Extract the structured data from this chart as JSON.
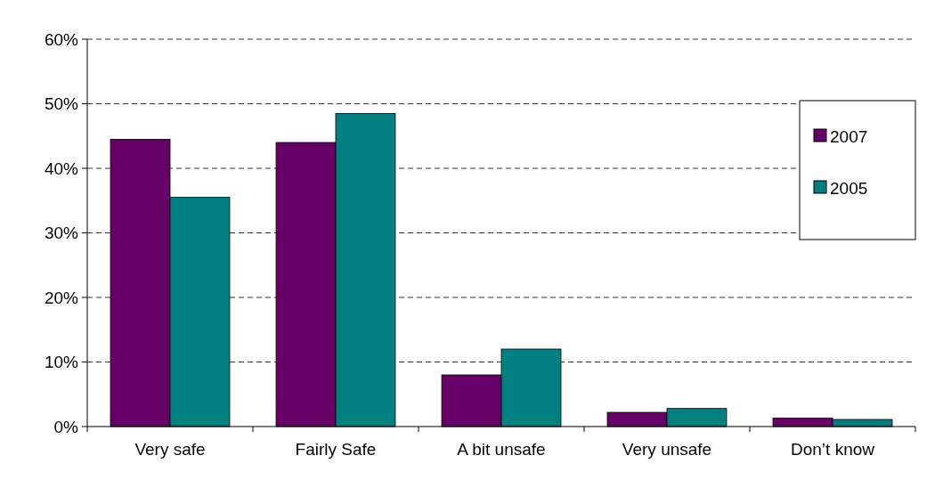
{
  "chart_data": {
    "type": "bar",
    "categories": [
      "Very safe",
      "Fairly Safe",
      "A bit unsafe",
      "Very unsafe",
      "Don’t know"
    ],
    "series": [
      {
        "name": "2007",
        "color": "#660066",
        "values": [
          44.5,
          44,
          8,
          2.2,
          1.3
        ]
      },
      {
        "name": "2005",
        "color": "#008080",
        "values": [
          35.5,
          48.5,
          12,
          2.8,
          1.1
        ]
      }
    ],
    "ylim": [
      0,
      60
    ],
    "yticks": [
      {
        "value": 0,
        "label": "0%"
      },
      {
        "value": 10,
        "label": "10%"
      },
      {
        "value": 20,
        "label": "20%"
      },
      {
        "value": 30,
        "label": "30%"
      },
      {
        "value": 40,
        "label": "40%"
      },
      {
        "value": 50,
        "label": "50%"
      },
      {
        "value": 60,
        "label": "60%"
      }
    ],
    "grid": "y",
    "legend": "right"
  }
}
